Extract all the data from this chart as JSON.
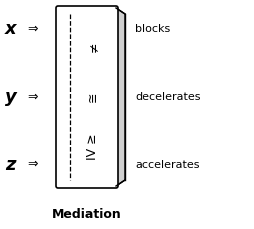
{
  "title": "Mediation",
  "left_labels": [
    "x",
    "y",
    "z"
  ],
  "right_labels": [
    "blocks",
    "decelerates",
    "accelerates"
  ],
  "inner_symbols": [
    "≠",
    "≅",
    "IV ≥"
  ],
  "bg_color": "#ffffff",
  "text_color": "#000000",
  "box_color": "#000000"
}
